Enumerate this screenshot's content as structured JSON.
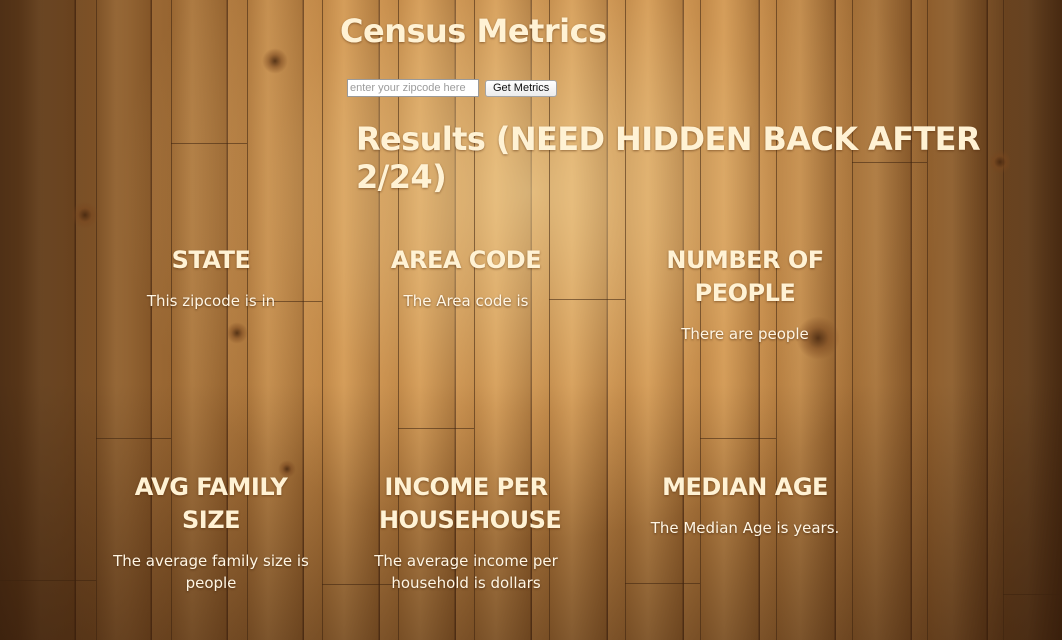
{
  "page": {
    "title": "Census Metrics",
    "results_heading": "Results (NEED HIDDEN BACK AFTER 2/24)"
  },
  "search": {
    "placeholder": "enter your zipcode here",
    "value": "",
    "button_label": "Get Metrics"
  },
  "metrics": [
    {
      "title": "STATE",
      "text": "This zipcode is in"
    },
    {
      "title": "AREA CODE",
      "text": "The Area code is"
    },
    {
      "title": "NUMBER OF PEOPLE",
      "text": "There are people"
    },
    {
      "title": "AVG FAMILY SIZE",
      "text": "The average family size is people"
    },
    {
      "title": "INCOME PER HOUSEHOUSE",
      "text": "The average income per household is dollars"
    },
    {
      "title": "MEDIAN AGE",
      "text": "The Median Age is years."
    }
  ],
  "colors": {
    "text": "#fff2d4",
    "wood": "#b07a3c"
  }
}
